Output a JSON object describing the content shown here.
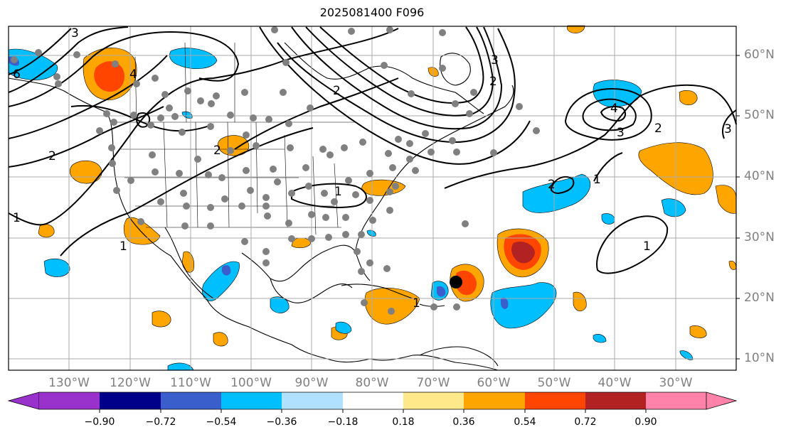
{
  "title": "2025081400 F096",
  "lat_labels": [
    "60°N",
    "50°N",
    "40°N",
    "30°N",
    "20°N",
    "10°N"
  ],
  "lon_labels": [
    "130°W",
    "120°W",
    "110°W",
    "100°W",
    "90°W",
    "80°W",
    "70°W",
    "60°W",
    "50°W",
    "40°W",
    "30°W"
  ],
  "colorbar": {
    "ticks": [
      "−0.90",
      "−0.72",
      "−0.54",
      "−0.36",
      "−0.18",
      "0.18",
      "0.36",
      "0.54",
      "0.72",
      "0.90"
    ],
    "colors": [
      "#9932CC",
      "#00008B",
      "#3A5FCD",
      "#00BFFF",
      "#B0E2FF",
      "#FFFFFF",
      "#FFE88A",
      "#FFA500",
      "#FF4500",
      "#B22222",
      "#FF82AB"
    ]
  },
  "contour_labels": [
    "3",
    "6",
    "4",
    "2",
    "2",
    "1",
    "2",
    "1",
    "1",
    "2",
    "3",
    "4",
    "3",
    "2",
    "1",
    "2",
    "1",
    "1",
    "3"
  ]
}
